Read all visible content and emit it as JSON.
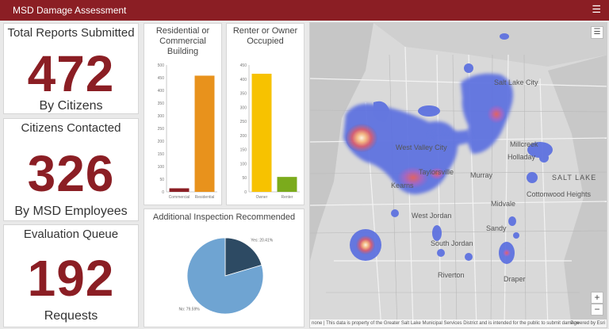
{
  "app": {
    "title": "MSD Damage Assessment",
    "menu_icon": "hamburger-icon"
  },
  "stats": [
    {
      "title": "Total Reports Submitted",
      "value": "472",
      "subtitle": "By Citizens"
    },
    {
      "title": "Citizens Contacted",
      "value": "326",
      "subtitle": "By MSD Employees"
    },
    {
      "title": "Evaluation Queue",
      "value": "192",
      "subtitle": "Requests"
    }
  ],
  "colors": {
    "brand": "#8b1e24",
    "orange": "#e8921c",
    "yellow": "#f7c200",
    "green": "#7bab1c",
    "pie_light": "#6fa4d2",
    "pie_dark": "#2d4a63"
  },
  "chart_data": [
    {
      "type": "bar",
      "title": "Residential or Commercial Building",
      "categories": [
        "Commercial",
        "Residential"
      ],
      "values": [
        14,
        458
      ],
      "colors": [
        "#8b1e24",
        "#e8921c"
      ],
      "ylim": [
        0,
        500
      ],
      "yticks": [
        "0",
        "50",
        "100",
        "150",
        "200",
        "250",
        "300",
        "350",
        "400",
        "450",
        "500"
      ]
    },
    {
      "type": "bar",
      "title": "Renter or Owner Occupied",
      "categories": [
        "Owner",
        "Renter"
      ],
      "values": [
        419,
        53
      ],
      "colors": [
        "#f7c200",
        "#7bab1c"
      ],
      "ylim": [
        0,
        450
      ],
      "yticks": [
        "0",
        "50",
        "100",
        "150",
        "200",
        "250",
        "300",
        "350",
        "400",
        "450"
      ]
    },
    {
      "type": "pie",
      "title": "Additional Inspection Recommended",
      "slices": [
        {
          "label": "Yes",
          "pct_label": "Yes: 20.41%",
          "value": 20.41,
          "color": "#2d4a63"
        },
        {
          "label": "No",
          "pct_label": "No: 79.59%",
          "value": 79.59,
          "color": "#6fa4d2"
        }
      ]
    }
  ],
  "map": {
    "layer_icon": "layers-icon",
    "zoom_in": "+",
    "zoom_out": "−",
    "labels": [
      "Salt Lake City",
      "West Valley City",
      "Taylorsville",
      "Murray",
      "Millcreek",
      "Holladay",
      "Cottonwood Heights",
      "West Jordan",
      "South Jordan",
      "Sandy",
      "Riverton",
      "Draper",
      "Kearns",
      "Midvale",
      "SALT LAKE"
    ],
    "attribution": "none | This data is property of the Greater Salt Lake Municipal Services District and is intended for the public to submit damage",
    "powered_by": "Powered by Esri"
  }
}
